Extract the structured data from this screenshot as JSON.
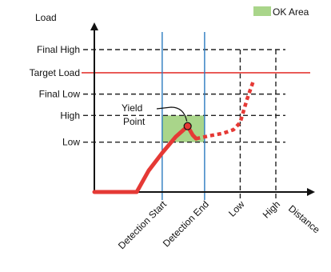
{
  "chart_data": {
    "type": "line",
    "title": "",
    "xlabel": "Distance",
    "ylabel": "Load",
    "legend": {
      "label": "OK Area",
      "color": "#a9d58a",
      "placement": "top-right"
    },
    "y_levels": [
      {
        "name": "final-high",
        "label": "Final High",
        "value": 4,
        "color": "#222222",
        "style": "dashed"
      },
      {
        "name": "target-load",
        "label": "Target Load",
        "value": 3.35,
        "color": "#e53935",
        "style": "solid"
      },
      {
        "name": "final-low",
        "label": "Final Low",
        "value": 2.75,
        "color": "#222222",
        "style": "dashed"
      },
      {
        "name": "high",
        "label": "High",
        "value": 2.15,
        "color": "#222222",
        "style": "dashed"
      },
      {
        "name": "low",
        "label": "Low",
        "value": 1.4,
        "color": "#222222",
        "style": "dashed"
      }
    ],
    "x_markers": [
      {
        "name": "detection-start",
        "label": "Detection Start",
        "value": 2,
        "color": "#2b7bbf",
        "style": "solid"
      },
      {
        "name": "detection-end",
        "label": "Detection End",
        "value": 3.25,
        "color": "#2b7bbf",
        "style": "solid"
      },
      {
        "name": "low",
        "label": "Low",
        "value": 4.3,
        "color": "#222222",
        "style": "dashed"
      },
      {
        "name": "high",
        "label": "High",
        "value": 5.35,
        "color": "#222222",
        "style": "dashed"
      }
    ],
    "ok_area": {
      "x": [
        2,
        3.25
      ],
      "y": [
        1.4,
        2.15
      ]
    },
    "yield_point": {
      "label_lines": [
        "Yield",
        "Point"
      ],
      "x": 2.75,
      "y": 1.85
    },
    "series": [
      {
        "style": "solid",
        "color": "#e53935",
        "points": [
          [
            0,
            0
          ],
          [
            1.25,
            0
          ],
          [
            1.6,
            0.6
          ],
          [
            2,
            1.1
          ],
          [
            2.4,
            1.55
          ],
          [
            2.75,
            1.85
          ],
          [
            2.9,
            1.6
          ],
          [
            3.0,
            1.5
          ]
        ]
      },
      {
        "style": "dotted",
        "color": "#e53935",
        "points": [
          [
            3.0,
            1.5
          ],
          [
            3.4,
            1.58
          ],
          [
            3.8,
            1.65
          ],
          [
            4.1,
            1.75
          ],
          [
            4.3,
            1.95
          ],
          [
            4.5,
            2.6
          ],
          [
            4.7,
            3.15
          ]
        ]
      }
    ],
    "xlim": [
      0,
      6
    ],
    "ylim": [
      0,
      4.7
    ]
  }
}
